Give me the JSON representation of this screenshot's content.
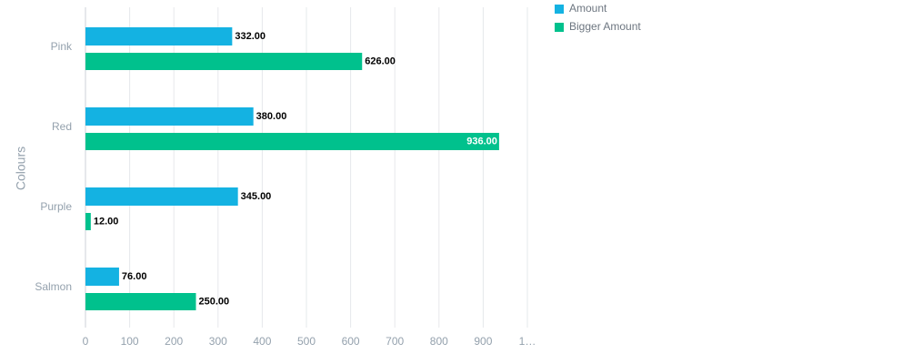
{
  "chart_data": {
    "type": "hbar",
    "y_label": "Colours",
    "categories": [
      "Pink",
      "Red",
      "Purple",
      "Salmon"
    ],
    "series": [
      {
        "name": "Amount",
        "color": "#14b2e2",
        "values": [
          332,
          380,
          345,
          76
        ],
        "value_labels": [
          "332.00",
          "380.00",
          "345.00",
          "76.00"
        ]
      },
      {
        "name": "Bigger Amount",
        "color": "#00c18d",
        "values": [
          626,
          936,
          12,
          250
        ],
        "value_labels": [
          "626.00",
          "936.00",
          "12.00",
          "250.00"
        ]
      }
    ],
    "xlim": [
      0,
      1000
    ],
    "xticks": [
      0,
      100,
      200,
      300,
      400,
      500,
      600,
      700,
      800,
      900,
      {
        "value": 1000,
        "label": "1…"
      }
    ],
    "grid": true
  }
}
